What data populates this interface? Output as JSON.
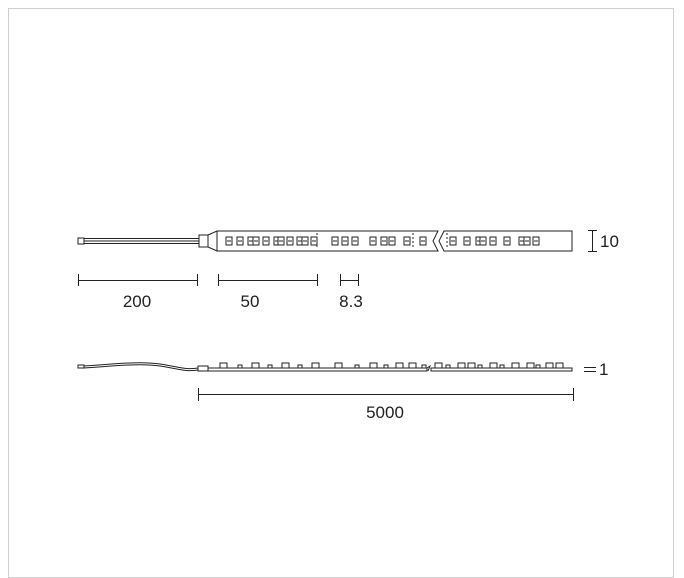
{
  "dimensions": {
    "height": "10",
    "lead_length": "200",
    "segment": "50",
    "pitch": "8.3",
    "thickness": "1",
    "total_length": "5000"
  },
  "colors": {
    "line": "#222222",
    "frame": "#cfcfcf"
  }
}
